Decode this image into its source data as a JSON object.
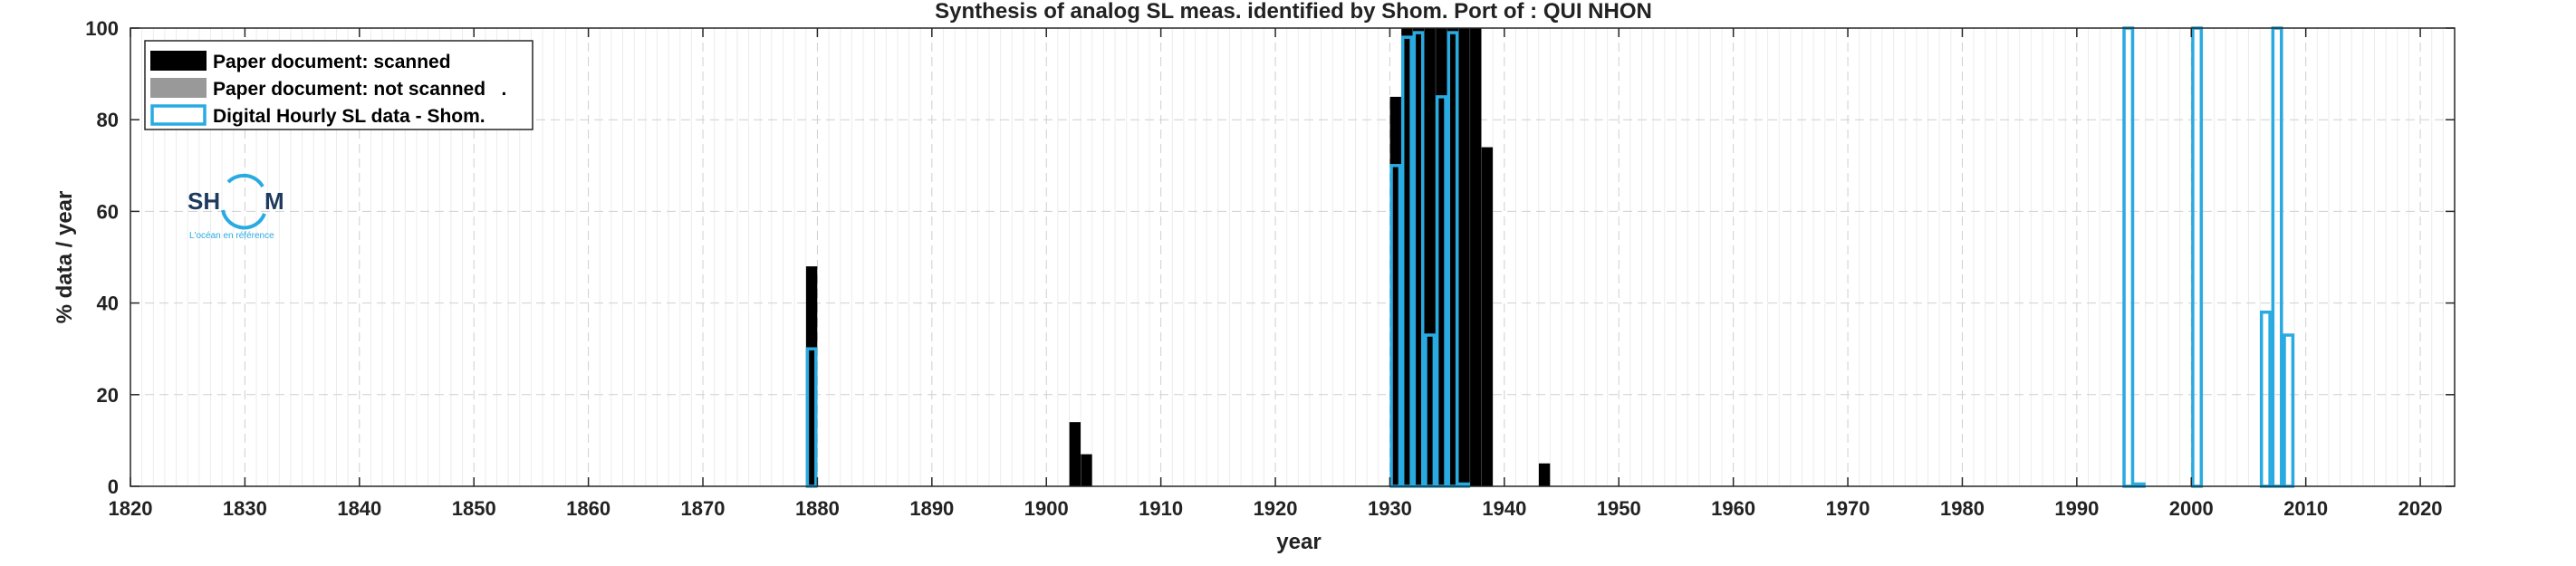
{
  "chart_data": {
    "type": "bar",
    "title": "Synthesis of analog SL meas. identified by Shom. Port of : QUI NHON",
    "xlabel": "year",
    "ylabel": "% data / year",
    "xlim": [
      1820,
      2023
    ],
    "ylim": [
      0,
      100
    ],
    "x_ticks": [
      1820,
      1830,
      1840,
      1850,
      1860,
      1870,
      1880,
      1890,
      1900,
      1910,
      1920,
      1930,
      1940,
      1950,
      1960,
      1970,
      1980,
      1990,
      2000,
      2010,
      2020
    ],
    "y_ticks": [
      0,
      20,
      40,
      60,
      80,
      100
    ],
    "grid": true,
    "legend_position": "top-left",
    "colors": {
      "scanned": "#000000",
      "not_scanned": "#999999",
      "digital": "#29abe2"
    },
    "series": [
      {
        "name": "Paper document: scanned",
        "style": "filled",
        "points": [
          {
            "year": 1879,
            "value": 48
          },
          {
            "year": 1902,
            "value": 14
          },
          {
            "year": 1903,
            "value": 7
          },
          {
            "year": 1930,
            "value": 85
          },
          {
            "year": 1931,
            "value": 100
          },
          {
            "year": 1932,
            "value": 100
          },
          {
            "year": 1933,
            "value": 100
          },
          {
            "year": 1934,
            "value": 100
          },
          {
            "year": 1935,
            "value": 100
          },
          {
            "year": 1936,
            "value": 100
          },
          {
            "year": 1937,
            "value": 100
          },
          {
            "year": 1938,
            "value": 74
          },
          {
            "year": 1943,
            "value": 5
          }
        ]
      },
      {
        "name": "Paper document: not scanned",
        "style": "filled",
        "points": []
      },
      {
        "name": "Digital Hourly SL data - Shom.",
        "style": "outline",
        "points": [
          {
            "year": 1879,
            "value": 30
          },
          {
            "year": 1930,
            "value": 70
          },
          {
            "year": 1931,
            "value": 98
          },
          {
            "year": 1932,
            "value": 99
          },
          {
            "year": 1933,
            "value": 33
          },
          {
            "year": 1934,
            "value": 85
          },
          {
            "year": 1935,
            "value": 99
          },
          {
            "year": 1936,
            "value": 0.5
          },
          {
            "year": 1994,
            "value": 100
          },
          {
            "year": 1995,
            "value": 0.5
          },
          {
            "year": 2000,
            "value": 100
          },
          {
            "year": 2006,
            "value": 38
          },
          {
            "year": 2007,
            "value": 100
          },
          {
            "year": 2008,
            "value": 33
          }
        ]
      }
    ],
    "legend_entries": [
      "Paper document: scanned",
      "Paper document: not scanned   .",
      "Digital Hourly SL data - Shom."
    ]
  },
  "logo": {
    "text_left": "SH",
    "text_right": "M",
    "tagline": "L'océan en référence"
  }
}
